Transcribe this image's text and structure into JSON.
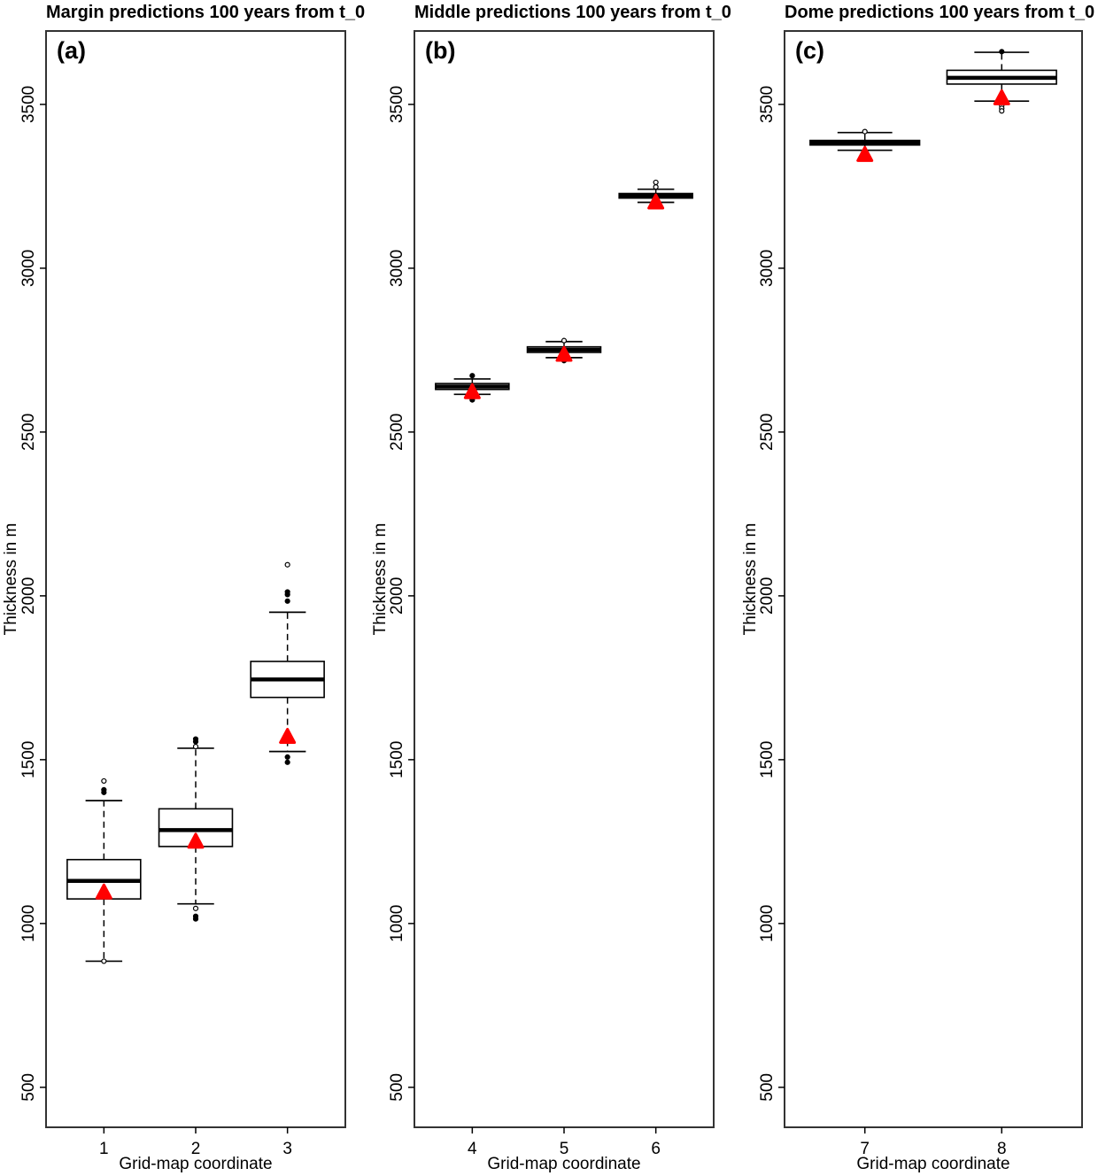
{
  "figure": {
    "background": "#ffffff",
    "border_color": "#333333",
    "box_color": "#000000",
    "marker_color": "#ff0000"
  },
  "chart_data": [
    {
      "type": "boxplot",
      "panel_label": "(a)",
      "title": "Margin predictions 100 years from t_0",
      "xlabel": "Grid-map coordinate",
      "ylabel": "Thickness in m",
      "categories": [
        "1",
        "2",
        "3"
      ],
      "yticks": [
        500,
        1000,
        1500,
        2000,
        2500,
        3000,
        3500
      ],
      "ylim": [
        380,
        3725
      ],
      "grid": false,
      "legend": "none",
      "boxes": [
        {
          "category": "1",
          "whisker_low": 885,
          "q1": 1075,
          "median": 1130,
          "q3": 1195,
          "whisker_high": 1375,
          "outliers": [
            {
              "value": 1435,
              "style": "open"
            },
            {
              "value": 1408,
              "style": "filled"
            },
            {
              "value": 1400,
              "style": "filled"
            },
            {
              "value": 885,
              "style": "open"
            }
          ],
          "red_triangle": 1095
        },
        {
          "category": "2",
          "whisker_low": 1060,
          "q1": 1235,
          "median": 1285,
          "q3": 1350,
          "whisker_high": 1535,
          "outliers": [
            {
              "value": 1563,
              "style": "filled"
            },
            {
              "value": 1555,
              "style": "filled"
            },
            {
              "value": 1540,
              "style": "open"
            },
            {
              "value": 1046,
              "style": "open"
            },
            {
              "value": 1022,
              "style": "filled"
            },
            {
              "value": 1014,
              "style": "filled"
            }
          ],
          "red_triangle": 1250
        },
        {
          "category": "3",
          "whisker_low": 1525,
          "q1": 1690,
          "median": 1745,
          "q3": 1800,
          "whisker_high": 1950,
          "outliers": [
            {
              "value": 2095,
              "style": "open"
            },
            {
              "value": 2012,
              "style": "filled"
            },
            {
              "value": 2004,
              "style": "filled"
            },
            {
              "value": 1984,
              "style": "filled"
            },
            {
              "value": 1508,
              "style": "filled"
            },
            {
              "value": 1492,
              "style": "filled"
            }
          ],
          "red_triangle": 1570
        }
      ]
    },
    {
      "type": "boxplot",
      "panel_label": "(b)",
      "title": "Middle predictions 100 years from t_0",
      "xlabel": "Grid-map coordinate",
      "ylabel": "Thickness in m",
      "categories": [
        "4",
        "5",
        "6"
      ],
      "yticks": [
        500,
        1000,
        1500,
        2000,
        2500,
        3000,
        3500
      ],
      "ylim": [
        380,
        3725
      ],
      "grid": false,
      "legend": "none",
      "boxes": [
        {
          "category": "4",
          "whisker_low": 2615,
          "q1": 2630,
          "median": 2639,
          "q3": 2648,
          "whisker_high": 2662,
          "outliers": [
            {
              "value": 2672,
              "style": "filled"
            },
            {
              "value": 2598,
              "style": "filled"
            }
          ],
          "red_triangle": 2622
        },
        {
          "category": "5",
          "whisker_low": 2727,
          "q1": 2743,
          "median": 2751,
          "q3": 2760,
          "whisker_high": 2776,
          "outliers": [
            {
              "value": 2779,
              "style": "open"
            },
            {
              "value": 2718,
              "style": "filled"
            }
          ],
          "red_triangle": 2736
        },
        {
          "category": "6",
          "whisker_low": 3201,
          "q1": 3214,
          "median": 3221,
          "q3": 3228,
          "whisker_high": 3241,
          "outliers": [
            {
              "value": 3262,
              "style": "open"
            },
            {
              "value": 3248,
              "style": "open"
            }
          ],
          "red_triangle": 3201
        }
      ]
    },
    {
      "type": "boxplot",
      "panel_label": "(c)",
      "title": "Dome predictions 100 years from t_0",
      "xlabel": "Grid-map coordinate",
      "ylabel": "Thickness in m",
      "categories": [
        "7",
        "8"
      ],
      "yticks": [
        500,
        1000,
        1500,
        2000,
        2500,
        3000,
        3500
      ],
      "ylim": [
        380,
        3725
      ],
      "grid": false,
      "legend": "none",
      "boxes": [
        {
          "category": "7",
          "whisker_low": 3360,
          "q1": 3376,
          "median": 3383,
          "q3": 3390,
          "whisker_high": 3414,
          "outliers": [
            {
              "value": 3417,
              "style": "open"
            }
          ],
          "red_triangle": 3346
        },
        {
          "category": "8",
          "whisker_low": 3510,
          "q1": 3562,
          "median": 3581,
          "q3": 3604,
          "whisker_high": 3659,
          "outliers": [
            {
              "value": 3661,
              "style": "filled"
            },
            {
              "value": 3496,
              "style": "open"
            },
            {
              "value": 3488,
              "style": "open"
            },
            {
              "value": 3480,
              "style": "open"
            }
          ],
          "red_triangle": 3519
        }
      ]
    }
  ]
}
